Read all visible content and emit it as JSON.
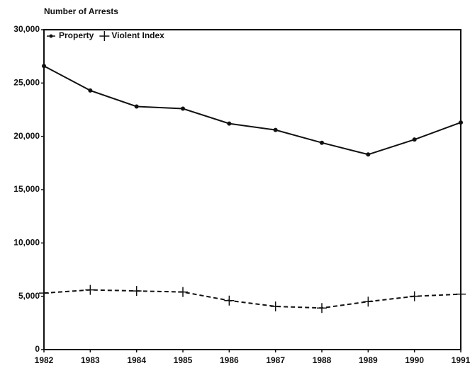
{
  "chart_data": {
    "type": "line",
    "y_axis_label": "Number of Arrests",
    "categories": [
      "1982",
      "1983",
      "1984",
      "1985",
      "1986",
      "1987",
      "1988",
      "1989",
      "1990",
      "1991"
    ],
    "series": [
      {
        "name": "Property",
        "color": "#111111",
        "dashed": false,
        "marker": "dot",
        "values": [
          26600,
          24300,
          22800,
          22600,
          21200,
          20600,
          19400,
          18300,
          19700,
          21300
        ]
      },
      {
        "name": "Violent Index",
        "color": "#111111",
        "dashed": true,
        "marker": "plus",
        "values": [
          5300,
          5600,
          5500,
          5400,
          4600,
          4050,
          3900,
          4500,
          5000,
          5200
        ]
      }
    ],
    "ylim": [
      0,
      30000
    ],
    "yticks": [
      0,
      {
        "value": 5000,
        "label": "5,000"
      },
      {
        "value": 10000,
        "label": "10,000"
      },
      {
        "value": 15000,
        "label": "15,000"
      },
      {
        "value": 20000,
        "label": "20,000"
      },
      {
        "value": 25000,
        "label": "25,000"
      },
      {
        "value": 30000,
        "label": "30,000"
      }
    ],
    "legend": "upper left",
    "grid": false
  }
}
